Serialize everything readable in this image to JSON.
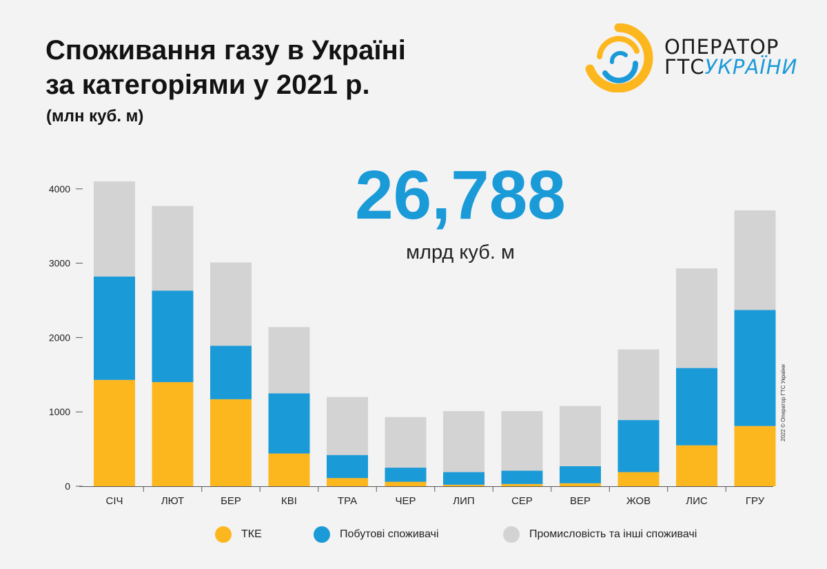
{
  "header": {
    "title_line1": "Споживання газу в Україні",
    "title_line2": "за категоріями у 2021 р.",
    "unit": "(млн куб. м)"
  },
  "logo": {
    "line1": "ОПЕРАТОР",
    "line2a": "ГТС",
    "line2b": "УКРАЇНИ"
  },
  "total": {
    "value": "26,788",
    "unit": "млрд куб. м"
  },
  "copyright": "2022 © Оператор ГТС України",
  "colors": {
    "tke": "#fdb71e",
    "household": "#1b9ad8",
    "industry": "#d3d3d3",
    "accent": "#1b9ad8"
  },
  "chart_data": {
    "type": "bar",
    "stacked": true,
    "categories": [
      "СІЧ",
      "ЛЮТ",
      "БЕР",
      "КВІ",
      "ТРА",
      "ЧЕР",
      "ЛИП",
      "СЕР",
      "ВЕР",
      "ЖОВ",
      "ЛИС",
      "ГРУ"
    ],
    "series": [
      {
        "name": "ТКЕ",
        "color": "#fdb71e",
        "values": [
          1430,
          1400,
          1170,
          440,
          110,
          60,
          20,
          30,
          40,
          190,
          550,
          810
        ]
      },
      {
        "name": "Побутові споживачі",
        "color": "#1b9ad8",
        "values": [
          1390,
          1230,
          720,
          810,
          310,
          190,
          170,
          180,
          230,
          700,
          1040,
          1560
        ]
      },
      {
        "name": "Промисловість та інші споживачі",
        "color": "#d3d3d3",
        "values": [
          1280,
          1140,
          1120,
          890,
          780,
          680,
          820,
          800,
          810,
          950,
          1340,
          1340
        ]
      }
    ],
    "y_ticks": [
      0,
      1000,
      2000,
      3000,
      4000
    ],
    "ylim": [
      0,
      4100
    ],
    "legend_position": "bottom",
    "grid": false
  }
}
